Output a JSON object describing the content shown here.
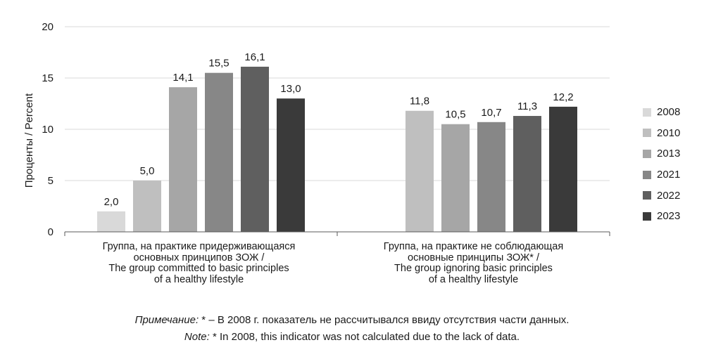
{
  "chart_data": {
    "type": "bar",
    "ylabel": "Проценты / Percent",
    "ylim": [
      0,
      20
    ],
    "yticks": [
      0,
      5,
      10,
      15,
      20
    ],
    "grid": true,
    "legend_position": "right",
    "categories": [
      {
        "lines": [
          "Группа, на практике придерживающаяся",
          "основных принципов ЗОЖ /",
          "The group committed to basic principles",
          "of a healthy lifestyle"
        ]
      },
      {
        "lines": [
          "Группа, на практике не соблюдающая",
          "основные принципы ЗОЖ* /",
          "The group ignoring basic principles",
          "of a healthy lifestyle"
        ]
      }
    ],
    "series": [
      {
        "name": "2008",
        "color": "#d9d9d9",
        "values": [
          2.0,
          null
        ],
        "labels": [
          "2,0",
          ""
        ]
      },
      {
        "name": "2010",
        "color": "#bfbfbf",
        "values": [
          5.0,
          11.8
        ],
        "labels": [
          "5,0",
          "11,8"
        ]
      },
      {
        "name": "2013",
        "color": "#a6a6a6",
        "values": [
          14.1,
          10.5
        ],
        "labels": [
          "14,1",
          "10,5"
        ]
      },
      {
        "name": "2021",
        "color": "#878787",
        "values": [
          15.5,
          10.7
        ],
        "labels": [
          "15,5",
          "10,7"
        ]
      },
      {
        "name": "2022",
        "color": "#5f5f5f",
        "values": [
          16.1,
          11.3
        ],
        "labels": [
          "16,1",
          "11,3"
        ]
      },
      {
        "name": "2023",
        "color": "#3a3a3a",
        "values": [
          13.0,
          12.2
        ],
        "labels": [
          "13,0",
          "12,2"
        ]
      }
    ]
  },
  "note": {
    "ru_prefix": "Примечание:",
    "ru_text": " * – В 2008 г. показатель не рассчитывался ввиду отсутствия части данных.",
    "en_prefix": "Note:",
    "en_text": " * In 2008, this indicator was not calculated due to the lack of data."
  }
}
